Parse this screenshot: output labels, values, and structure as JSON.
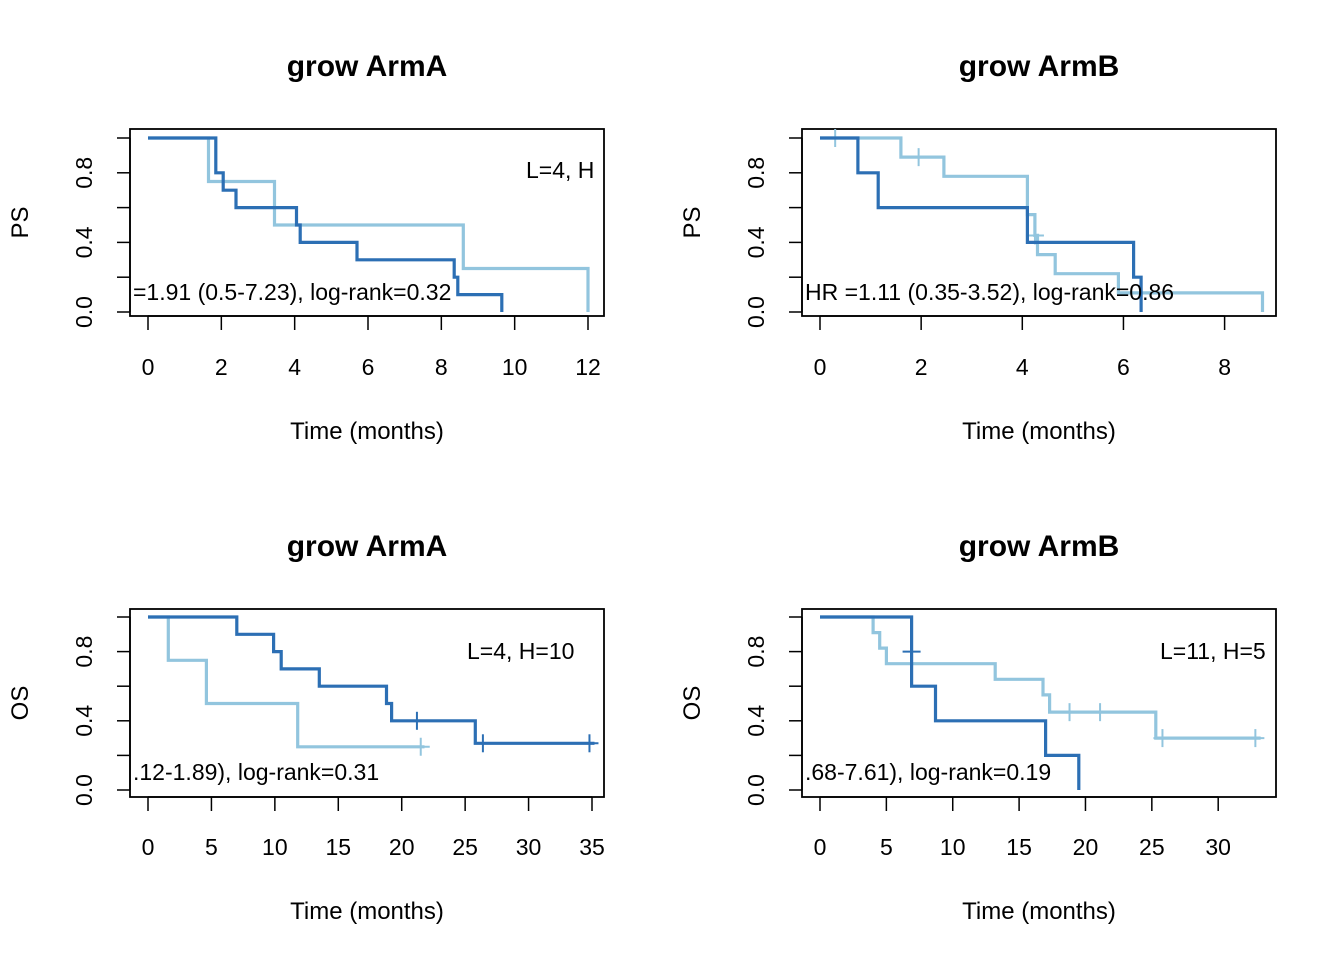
{
  "colors": {
    "low": "#92C5DE",
    "high": "#2C6FB4"
  },
  "chart_data": [
    {
      "type": "line",
      "title": "grow ArmA",
      "xlabel": "Time (months)",
      "ylabel": "PS",
      "xticks": [
        0,
        2,
        4,
        6,
        8,
        10,
        12
      ],
      "yticks": [
        0,
        0.2,
        0.4,
        0.6,
        0.8,
        1.0
      ],
      "ytick_labels": [
        "0.0",
        "",
        "0.4",
        "",
        "0.8",
        ""
      ],
      "xlim": [
        0,
        12
      ],
      "ylim": [
        0,
        1
      ],
      "annotations": {
        "counts": "L=4, H",
        "hr": "=1.91 (0.5-7.23), log-rank=0.32"
      },
      "series": [
        {
          "group": "low",
          "x": [
            0,
            1.65,
            1.65,
            3.45,
            3.45,
            8.6,
            8.6,
            12,
            12
          ],
          "y": [
            1,
            1,
            0.75,
            0.75,
            0.5,
            0.5,
            0.25,
            0.25,
            0
          ],
          "censor": []
        },
        {
          "group": "high",
          "x": [
            0,
            1.85,
            1.85,
            2.05,
            2.05,
            2.4,
            2.4,
            4.05,
            4.05,
            4.15,
            4.15,
            5.7,
            5.7,
            8.35,
            8.35,
            8.45,
            8.45,
            9.65,
            9.65
          ],
          "y": [
            1,
            1,
            0.8,
            0.8,
            0.7,
            0.7,
            0.6,
            0.6,
            0.5,
            0.5,
            0.4,
            0.4,
            0.3,
            0.3,
            0.2,
            0.2,
            0.1,
            0.1,
            0
          ],
          "censor": []
        }
      ]
    },
    {
      "type": "line",
      "title": "grow ArmB",
      "xlabel": "Time (months)",
      "ylabel": "PS",
      "xticks": [
        0,
        2,
        4,
        6,
        8
      ],
      "yticks": [
        0,
        0.2,
        0.4,
        0.6,
        0.8,
        1.0
      ],
      "ytick_labels": [
        "0.0",
        "",
        "0.4",
        "",
        "0.8",
        ""
      ],
      "xlim": [
        0,
        8.7
      ],
      "ylim": [
        0,
        1
      ],
      "annotations": {
        "counts": "",
        "hr": "HR =1.11 (0.35-3.52), log-rank=0.86"
      },
      "series": [
        {
          "group": "low",
          "x": [
            0,
            1.6,
            1.6,
            2.45,
            2.45,
            4.1,
            4.1,
            4.25,
            4.25,
            4.3,
            4.3,
            4.65,
            4.65,
            5.9,
            5.9,
            8.75,
            8.75
          ],
          "y": [
            1,
            1,
            0.89,
            0.89,
            0.78,
            0.78,
            0.56,
            0.56,
            0.44,
            0.44,
            0.33,
            0.33,
            0.22,
            0.22,
            0.11,
            0.11,
            0
          ],
          "censor": [
            [
              0.3,
              1
            ],
            [
              1.95,
              0.89
            ],
            [
              4.25,
              0.44
            ]
          ]
        },
        {
          "group": "high",
          "x": [
            0,
            0.75,
            0.75,
            1.15,
            1.15,
            4.1,
            4.1,
            6.2,
            6.2,
            6.35,
            6.35
          ],
          "y": [
            1,
            1,
            0.8,
            0.8,
            0.6,
            0.6,
            0.4,
            0.4,
            0.2,
            0.2,
            0
          ],
          "censor": []
        }
      ]
    },
    {
      "type": "line",
      "title": "grow ArmA",
      "xlabel": "Time (months)",
      "ylabel": "OS",
      "xticks": [
        0,
        5,
        10,
        15,
        20,
        25,
        30,
        35
      ],
      "yticks": [
        0,
        0.2,
        0.4,
        0.6,
        0.8,
        1.0
      ],
      "ytick_labels": [
        "0.0",
        "",
        "0.4",
        "",
        "0.8",
        ""
      ],
      "xlim": [
        0,
        35
      ],
      "ylim": [
        0,
        1
      ],
      "annotations": {
        "counts": "L=4, H=10",
        "hr": ".12-1.89), log-rank=0.31"
      },
      "series": [
        {
          "group": "low",
          "x": [
            0,
            1.6,
            1.6,
            4.6,
            4.6,
            11.8,
            11.8,
            21.8
          ],
          "y": [
            1,
            1,
            0.75,
            0.75,
            0.5,
            0.5,
            0.25,
            0.25
          ],
          "censor": [
            [
              21.5,
              0.25
            ]
          ]
        },
        {
          "group": "high",
          "x": [
            0,
            7,
            7,
            9.9,
            9.9,
            10.5,
            10.5,
            13.5,
            13.5,
            18.8,
            18.8,
            19.2,
            19.2,
            25.8,
            25.8,
            35.2
          ],
          "y": [
            1,
            1,
            0.9,
            0.9,
            0.8,
            0.8,
            0.7,
            0.7,
            0.6,
            0.6,
            0.5,
            0.5,
            0.4,
            0.4,
            0.27,
            0.27
          ],
          "censor": [
            [
              21.2,
              0.4
            ],
            [
              26.4,
              0.27
            ],
            [
              34.8,
              0.27
            ]
          ]
        }
      ]
    },
    {
      "type": "line",
      "title": "grow ArmB",
      "xlabel": "Time (months)",
      "ylabel": "OS",
      "xticks": [
        0,
        5,
        10,
        15,
        20,
        25,
        30
      ],
      "yticks": [
        0,
        0.2,
        0.4,
        0.6,
        0.8,
        1.0
      ],
      "ytick_labels": [
        "0.0",
        "",
        "0.4",
        "",
        "0.8",
        ""
      ],
      "xlim": [
        0,
        33.3
      ],
      "ylim": [
        0,
        1
      ],
      "annotations": {
        "counts": "L=11, H=5",
        "hr": ".68-7.61), log-rank=0.19"
      },
      "series": [
        {
          "group": "low",
          "x": [
            0,
            4,
            4,
            4.5,
            4.5,
            5,
            5,
            13.2,
            13.2,
            16.8,
            16.8,
            17.3,
            17.3,
            25.3,
            25.3,
            33.2
          ],
          "y": [
            1,
            1,
            0.91,
            0.91,
            0.82,
            0.82,
            0.73,
            0.73,
            0.64,
            0.64,
            0.55,
            0.55,
            0.45,
            0.45,
            0.3,
            0.3
          ],
          "censor": [
            [
              18.8,
              0.45
            ],
            [
              21.1,
              0.45
            ],
            [
              25.8,
              0.3
            ],
            [
              32.8,
              0.3
            ]
          ]
        },
        {
          "group": "high",
          "x": [
            0,
            6.9,
            6.9,
            8.7,
            8.7,
            17,
            17,
            19.5,
            19.5
          ],
          "y": [
            1,
            1,
            0.6,
            0.6,
            0.4,
            0.4,
            0.2,
            0.2,
            0
          ],
          "censor": [
            [
              6.9,
              0.8
            ]
          ]
        }
      ]
    }
  ]
}
